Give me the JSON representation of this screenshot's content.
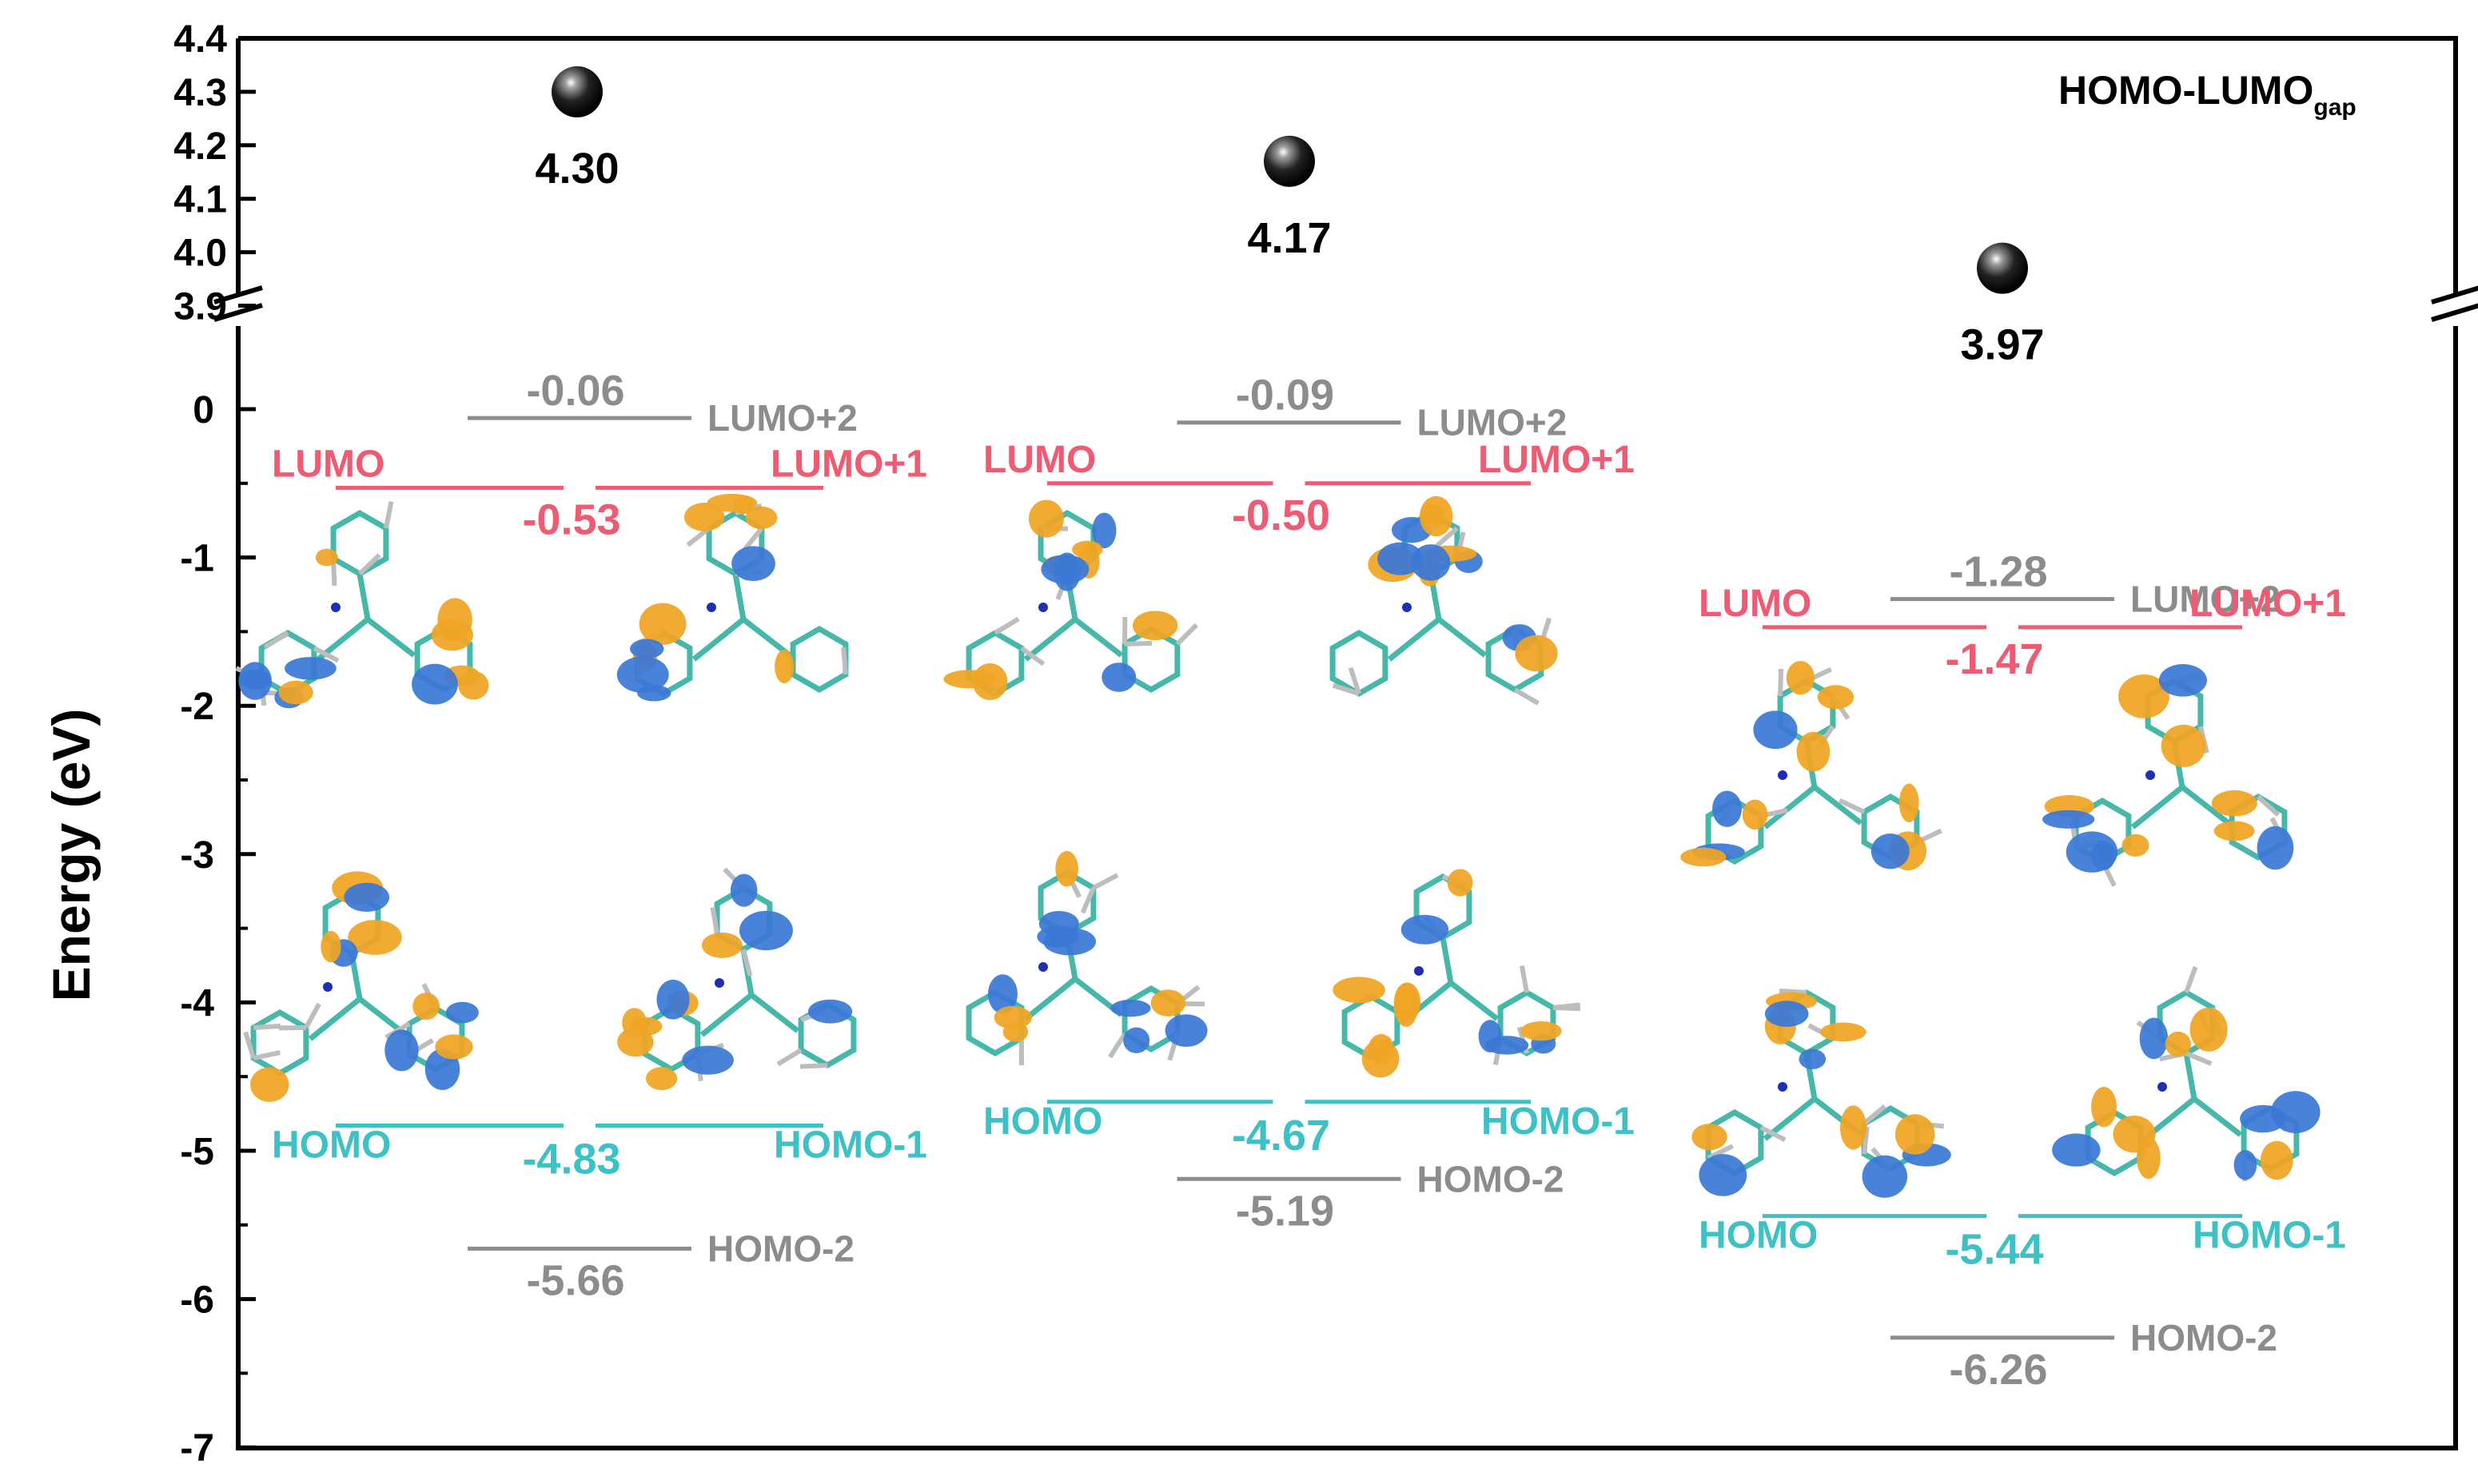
{
  "chart_data": {
    "type": "energy-level diagram",
    "ylabel": "Energy (eV)",
    "legend": {
      "label": "HOMO-LUMO",
      "subscript": "gap",
      "placement": "top-right"
    },
    "axis_upper": {
      "ylim": [
        3.9,
        4.4
      ],
      "ticks": [
        "3.9",
        "4.0",
        "4.1",
        "4.2",
        "4.3",
        "4.4"
      ]
    },
    "axis_lower": {
      "ylim": [
        -7,
        0.4
      ],
      "ticks": [
        "0",
        "-1",
        "-2",
        "-3",
        "-4",
        "-5",
        "-6",
        "-7"
      ]
    },
    "colors": {
      "lumo": "#ef5b73",
      "homo": "#3ec1c4",
      "other": "#8c8c8c",
      "axis": "#000000",
      "orbital_blue": "#3b78d6",
      "orbital_orange": "#f0a524",
      "bond": "#45b8aa"
    },
    "gap": [
      {
        "value": 4.3,
        "label": "4.30"
      },
      {
        "value": 4.17,
        "label": "4.17"
      },
      {
        "value": 3.97,
        "label": "3.97"
      }
    ],
    "groups": [
      {
        "levels": [
          {
            "name": "LUMO+2",
            "energy": -0.06,
            "value_label": "-0.06"
          },
          {
            "name": "LUMO",
            "name_right": "LUMO+1",
            "energy": -0.53,
            "value_label": "-0.53"
          },
          {
            "name": "HOMO",
            "name_right": "HOMO-1",
            "energy": -4.83,
            "value_label": "-4.83"
          },
          {
            "name": "HOMO-2",
            "energy": -5.66,
            "value_label": "-5.66"
          }
        ]
      },
      {
        "levels": [
          {
            "name": "LUMO+2",
            "energy": -0.09,
            "value_label": "-0.09"
          },
          {
            "name": "LUMO",
            "name_right": "LUMO+1",
            "energy": -0.5,
            "value_label": "-0.50"
          },
          {
            "name": "HOMO",
            "name_right": "HOMO-1",
            "energy": -4.67,
            "value_label": "-4.67"
          },
          {
            "name": "HOMO-2",
            "energy": -5.19,
            "value_label": "-5.19"
          }
        ]
      },
      {
        "levels": [
          {
            "name": "LUMO+2",
            "energy": -1.28,
            "value_label": "-1.28"
          },
          {
            "name": "LUMO",
            "name_right": "LUMO+1",
            "energy": -1.47,
            "value_label": "-1.47"
          },
          {
            "name": "HOMO",
            "name_right": "HOMO-1",
            "energy": -5.44,
            "value_label": "-5.44"
          },
          {
            "name": "HOMO-2",
            "energy": -6.26,
            "value_label": "-6.26"
          }
        ]
      }
    ]
  }
}
